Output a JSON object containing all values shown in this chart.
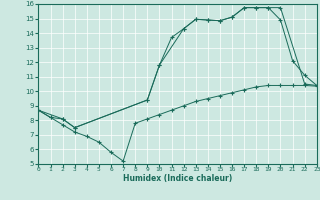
{
  "xlabel": "Humidex (Indice chaleur)",
  "xlim": [
    0,
    23
  ],
  "ylim": [
    5,
    16
  ],
  "xticks": [
    0,
    1,
    2,
    3,
    4,
    5,
    6,
    7,
    8,
    9,
    10,
    11,
    12,
    13,
    14,
    15,
    16,
    17,
    18,
    19,
    20,
    21,
    22,
    23
  ],
  "yticks": [
    5,
    6,
    7,
    8,
    9,
    10,
    11,
    12,
    13,
    14,
    15,
    16
  ],
  "bg_color": "#cde8e1",
  "line_color": "#1a6b5a",
  "grid_color": "#b0d5cc",
  "line1_x": [
    0,
    1,
    2,
    3,
    9,
    10,
    11,
    12,
    13,
    14,
    15,
    16,
    17,
    18,
    19,
    20,
    22,
    23
  ],
  "line1_y": [
    8.7,
    8.2,
    8.1,
    7.5,
    9.4,
    11.8,
    13.7,
    14.3,
    14.95,
    14.9,
    14.85,
    15.1,
    15.75,
    15.75,
    15.75,
    15.75,
    10.5,
    10.4
  ],
  "line2_x": [
    0,
    2,
    3,
    9,
    10,
    12,
    13,
    14,
    15,
    16,
    17,
    18,
    19,
    20,
    21,
    22,
    23
  ],
  "line2_y": [
    8.7,
    8.1,
    7.5,
    9.4,
    11.8,
    14.3,
    14.95,
    14.9,
    14.85,
    15.1,
    15.75,
    15.75,
    15.75,
    14.9,
    12.1,
    11.1,
    10.4
  ],
  "line3_x": [
    0,
    1,
    2,
    3,
    4,
    5,
    6,
    7,
    8,
    9,
    10,
    11,
    12,
    13,
    14,
    15,
    16,
    17,
    18,
    19,
    20,
    21,
    22,
    23
  ],
  "line3_y": [
    8.7,
    8.2,
    7.7,
    7.2,
    6.9,
    6.5,
    5.8,
    5.2,
    7.8,
    8.1,
    8.4,
    8.7,
    9.0,
    9.3,
    9.5,
    9.7,
    9.9,
    10.1,
    10.3,
    10.4,
    10.4,
    10.4,
    10.4,
    10.35
  ]
}
